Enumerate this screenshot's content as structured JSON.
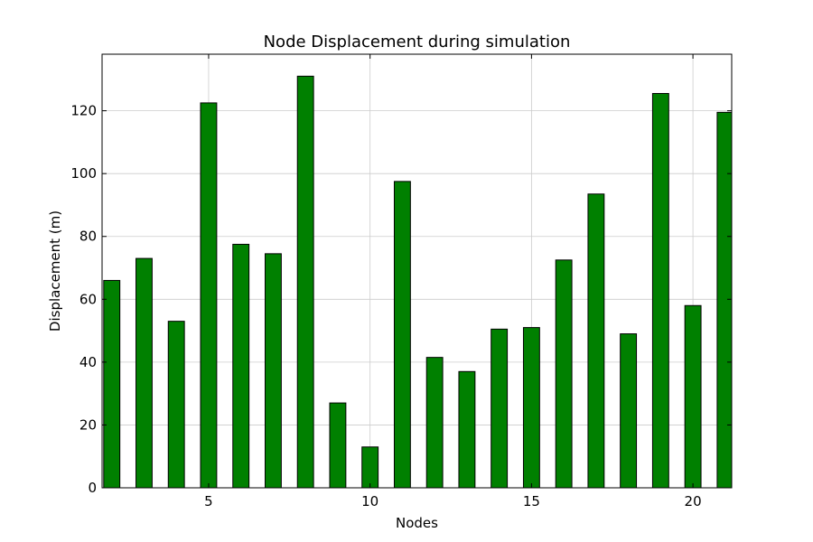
{
  "chart_data": {
    "type": "bar",
    "title": "Node Displacement during simulation",
    "xlabel": "Nodes",
    "ylabel": "Displacement (m)",
    "bar_color": "#008000",
    "edge_color": "#000000",
    "grid": true,
    "xlim": [
      1.7,
      21.2
    ],
    "ylim": [
      0,
      138
    ],
    "xticks": [
      5,
      10,
      15,
      20
    ],
    "yticks": [
      0,
      20,
      40,
      60,
      80,
      100,
      120
    ],
    "x": [
      2,
      3,
      4,
      5,
      6,
      7,
      8,
      9,
      10,
      11,
      12,
      13,
      14,
      15,
      16,
      17,
      18,
      19,
      20,
      21
    ],
    "values": [
      66,
      73,
      53,
      122.5,
      77.5,
      74.5,
      131,
      27,
      13,
      97.5,
      41.5,
      37,
      50.5,
      51,
      72.5,
      93.5,
      49,
      125.5,
      58,
      119.5
    ],
    "bar_width": 0.5
  }
}
